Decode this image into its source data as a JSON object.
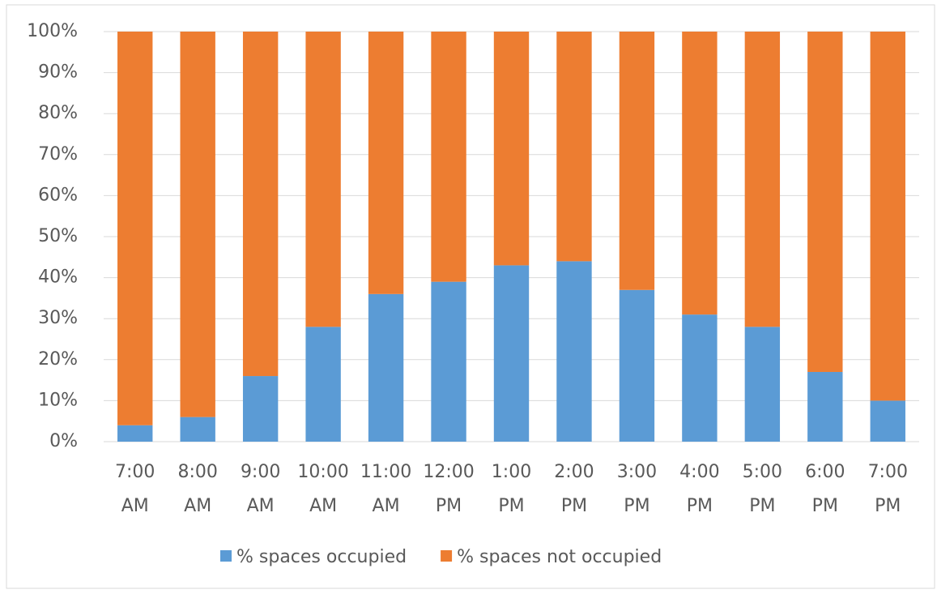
{
  "chart_data": {
    "type": "stacked_bar",
    "categories": [
      "7:00 AM",
      "8:00 AM",
      "9:00 AM",
      "10:00 AM",
      "11:00 AM",
      "12:00 PM",
      "1:00 PM",
      "2:00 PM",
      "3:00 PM",
      "4:00 PM",
      "5:00 PM",
      "6:00 PM",
      "7:00 PM"
    ],
    "series": [
      {
        "name": "% spaces occupied",
        "color": "#5b9bd5",
        "values": [
          4,
          6,
          16,
          28,
          36,
          39,
          43,
          44,
          37,
          31,
          28,
          17,
          10
        ]
      },
      {
        "name": "% spaces not occupied",
        "color": "#ed7d31",
        "values": [
          96,
          94,
          84,
          72,
          64,
          61,
          57,
          56,
          63,
          69,
          72,
          83,
          90
        ]
      }
    ],
    "ylim": [
      0,
      100
    ],
    "yticks": [
      {
        "value": 0,
        "label": "0%"
      },
      {
        "value": 10,
        "label": "10%"
      },
      {
        "value": 20,
        "label": "20%"
      },
      {
        "value": 30,
        "label": "30%"
      },
      {
        "value": 40,
        "label": "40%"
      },
      {
        "value": 50,
        "label": "50%"
      },
      {
        "value": 60,
        "label": "60%"
      },
      {
        "value": 70,
        "label": "70%"
      },
      {
        "value": 80,
        "label": "80%"
      },
      {
        "value": 90,
        "label": "90%"
      },
      {
        "value": 100,
        "label": "100%"
      }
    ],
    "grid": true,
    "legend": "bottom"
  }
}
